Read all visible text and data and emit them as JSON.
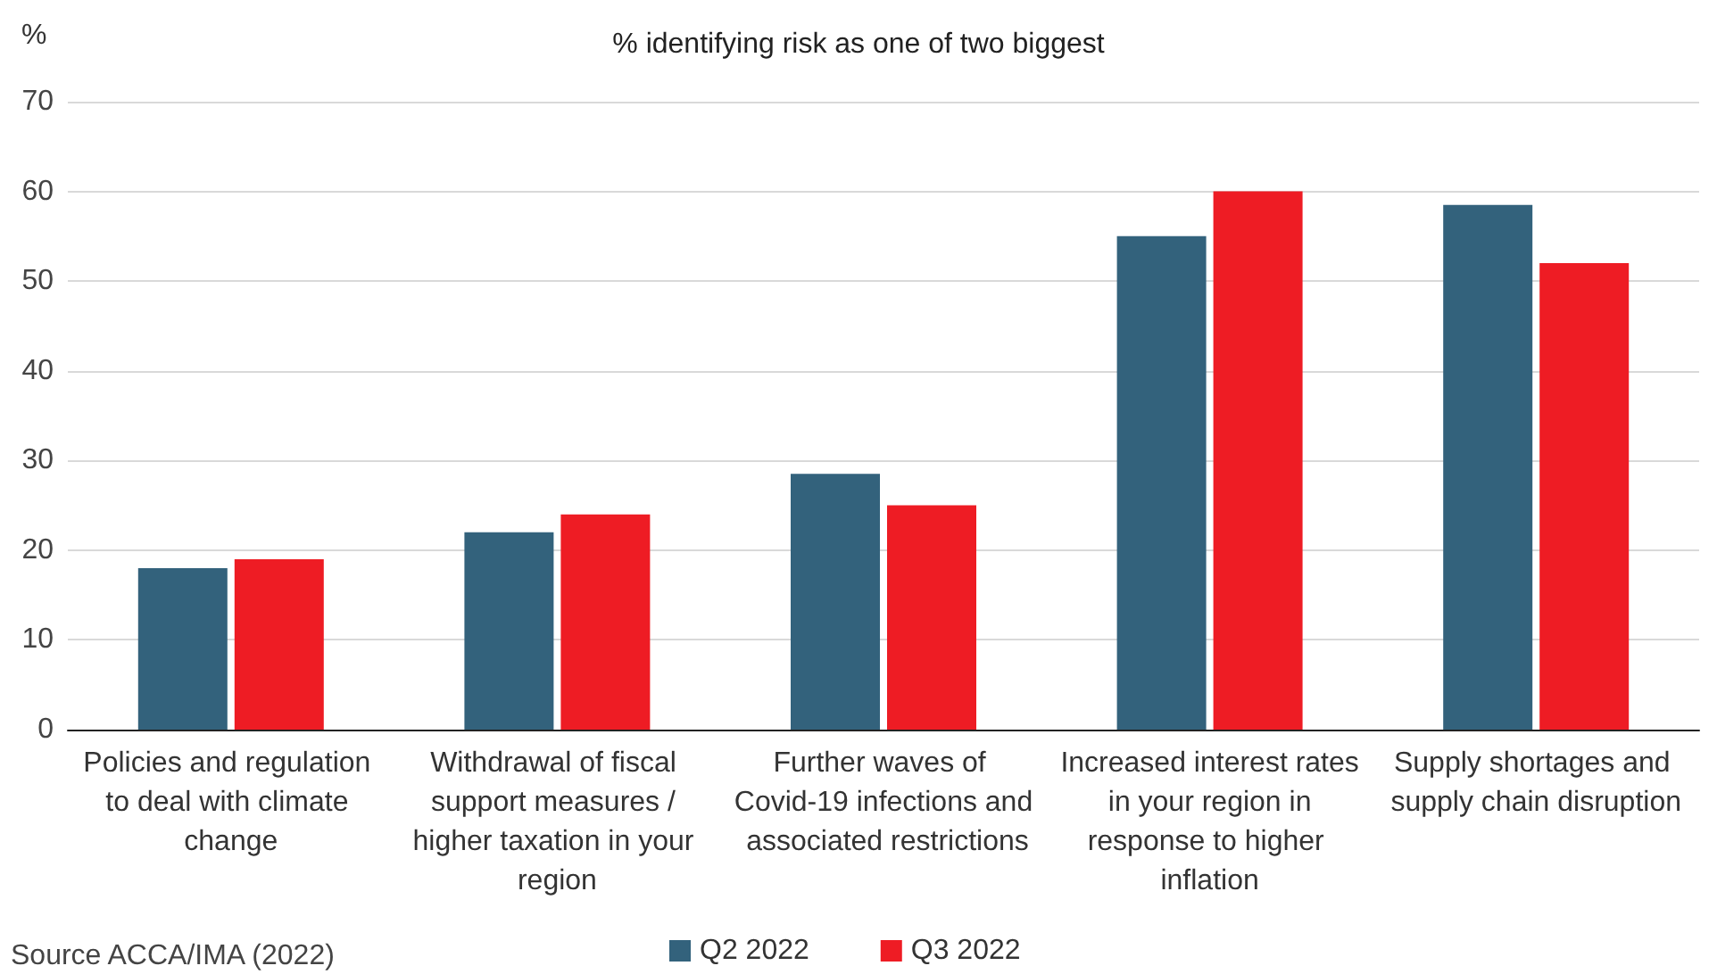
{
  "chart_data": {
    "type": "bar",
    "title": "% identifying risk as one of two biggest",
    "ylabel": "%",
    "categories": [
      "Policies and regulation to deal with climate change",
      "Withdrawal of fiscal support measures / higher taxation in your region",
      "Further waves of Covid-19 infections and associated restrictions",
      "Increased interest rates in your region in response to higher inflation",
      "Supply shortages and supply chain disruption"
    ],
    "series": [
      {
        "name": "Q2 2022",
        "color": "#33627c",
        "values": [
          18,
          22,
          28.5,
          55,
          58.5
        ]
      },
      {
        "name": "Q3 2022",
        "color": "#ee1c24",
        "values": [
          19,
          24,
          25,
          60,
          52
        ]
      }
    ],
    "ylim": [
      0,
      70
    ],
    "yticks": [
      0,
      10,
      20,
      30,
      40,
      50,
      60,
      70
    ],
    "grid": "y",
    "legend": "bottom",
    "annotations": [
      "Source ACCA/IMA (2022)"
    ]
  }
}
